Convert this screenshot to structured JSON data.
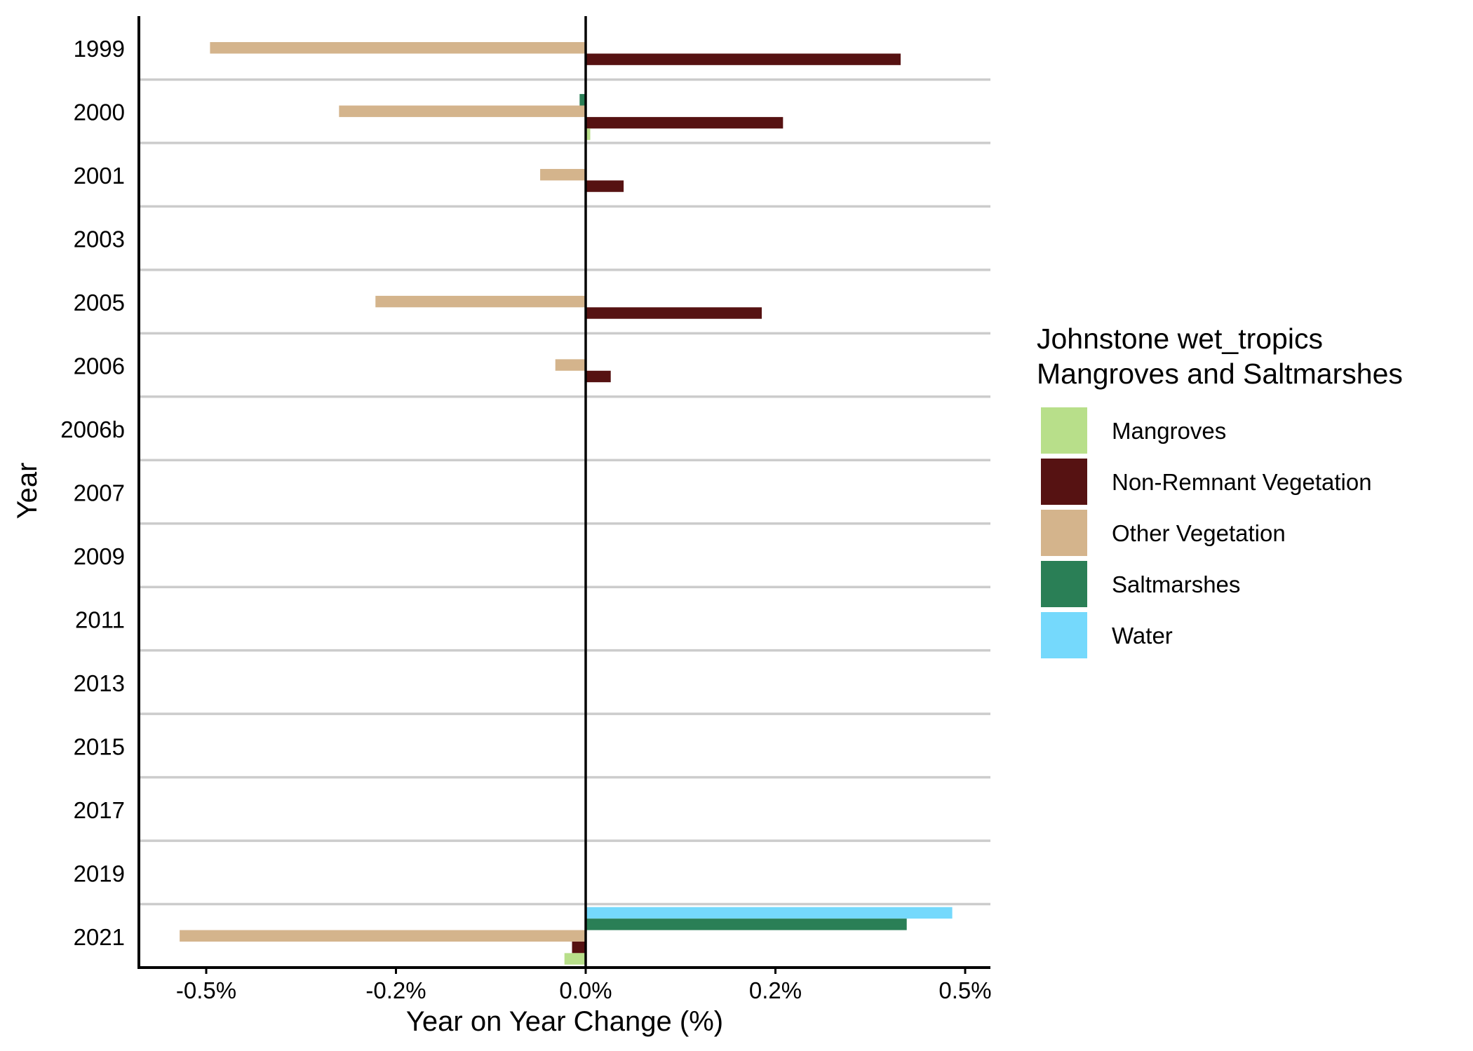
{
  "chart_data": {
    "type": "bar",
    "orientation": "horizontal",
    "xlabel": "Year on Year Change (%)",
    "ylabel": "Year",
    "categories": [
      "1999",
      "2000",
      "2001",
      "2003",
      "2005",
      "2006",
      "2006b",
      "2007",
      "2009",
      "2011",
      "2013",
      "2015",
      "2017",
      "2019",
      "2021"
    ],
    "xlim": [
      -0.58,
      0.53
    ],
    "x_ticks": [
      -0.5,
      -0.25,
      0.0,
      0.25,
      0.5
    ],
    "x_tick_labels": [
      "-0.5%",
      "-0.2%",
      "0.0%",
      "0.2%",
      "0.5%"
    ],
    "grid": "horizontal separators between years",
    "legend": {
      "title_lines": [
        "Johnstone wet_tropics",
        "Mangroves and Saltmarshes"
      ],
      "placement": "right"
    },
    "series": [
      {
        "name": "Water",
        "color": "#75D9FC",
        "values": [
          0,
          0,
          0,
          0,
          0,
          0,
          0,
          0,
          0,
          0,
          0,
          0,
          0,
          0,
          0.483
        ]
      },
      {
        "name": "Saltmarshes",
        "color": "#2A7F56",
        "values": [
          0,
          -0.008,
          0,
          0,
          0,
          0,
          0,
          0,
          0,
          0,
          0,
          0,
          0,
          0,
          0.423
        ]
      },
      {
        "name": "Other Vegetation",
        "color": "#D4B48C",
        "values": [
          -0.495,
          -0.325,
          -0.06,
          0,
          -0.277,
          -0.04,
          0,
          0,
          0,
          0,
          0,
          0,
          0,
          0,
          -0.535
        ]
      },
      {
        "name": "Non-Remnant Vegetation",
        "color": "#561212",
        "values": [
          0.415,
          0.26,
          0.05,
          0,
          0.232,
          0.033,
          0,
          0,
          0,
          0,
          0,
          0,
          0,
          0,
          -0.018
        ]
      },
      {
        "name": "Mangroves",
        "color": "#B8DF8A",
        "values": [
          0,
          0.006,
          0,
          0,
          0,
          0,
          0,
          0,
          0,
          0,
          0,
          0,
          0,
          0,
          -0.028
        ]
      }
    ],
    "legend_order": [
      "Mangroves",
      "Non-Remnant Vegetation",
      "Other Vegetation",
      "Saltmarshes",
      "Water"
    ]
  }
}
